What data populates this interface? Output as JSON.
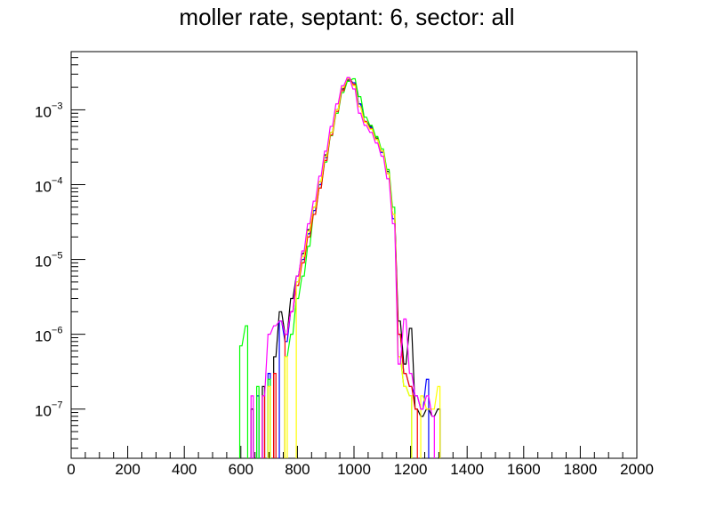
{
  "chart_data": {
    "type": "line",
    "title": "moller rate, septant: 6, sector: all",
    "xlabel": "",
    "ylabel": "",
    "xlim": [
      0,
      2000
    ],
    "ylim": [
      2.2e-08,
      0.006
    ],
    "yscale": "log",
    "grid": false,
    "x_ticks": [
      "0",
      "200",
      "400",
      "600",
      "800",
      "1000",
      "1200",
      "1400",
      "1600",
      "1800",
      "2000"
    ],
    "y_ticks": [
      {
        "value": 1e-07,
        "base": "10",
        "exp": "−7"
      },
      {
        "value": 1e-06,
        "base": "10",
        "exp": "−6"
      },
      {
        "value": 1e-05,
        "base": "10",
        "exp": "−5"
      },
      {
        "value": 0.0001,
        "base": "10",
        "exp": "−4"
      },
      {
        "value": 0.001,
        "base": "10",
        "exp": "−3"
      }
    ],
    "series": [
      {
        "color": "#000000",
        "x": [
          640,
          680,
          720,
          740,
          760,
          780,
          800,
          820,
          840,
          860,
          880,
          900,
          920,
          940,
          960,
          980,
          1000,
          1020,
          1040,
          1060,
          1080,
          1100,
          1120,
          1140,
          1160,
          1180,
          1200,
          1220,
          1240,
          1260,
          1280,
          1300
        ],
        "y": [
          1e-07,
          2e-07,
          5e-07,
          2e-06,
          1e-06,
          3e-06,
          6e-06,
          1.2e-05,
          2.5e-05,
          5e-05,
          0.00011,
          0.00025,
          0.0005,
          0.001,
          0.0019,
          0.0025,
          0.0022,
          0.0012,
          0.0007,
          0.0006,
          0.00042,
          0.00028,
          0.00015,
          4e-05,
          1.5e-06,
          4e-07,
          1.2e-06,
          1e-07,
          8e-08,
          1e-07,
          8e-08,
          1e-07
        ]
      },
      {
        "color": "#0000ff",
        "x": [
          660,
          700,
          740,
          760,
          780,
          800,
          820,
          840,
          860,
          880,
          900,
          920,
          940,
          960,
          980,
          1000,
          1020,
          1040,
          1060,
          1080,
          1100,
          1120,
          1140,
          1160,
          1180,
          1200,
          1220,
          1240,
          1260
        ],
        "y": [
          1.5e-07,
          3e-07,
          1.5e-06,
          8e-07,
          2e-06,
          5e-06,
          1e-05,
          2.2e-05,
          4.5e-05,
          0.0001,
          0.00023,
          0.0005,
          0.001,
          0.0018,
          0.0026,
          0.0023,
          0.0012,
          0.0007,
          0.00058,
          0.0004,
          0.00027,
          0.00014,
          3.5e-05,
          1e-06,
          3e-07,
          2e-07,
          1.5e-07,
          1e-07,
          2.5e-07
        ]
      },
      {
        "color": "#00ff00",
        "x": [
          600,
          620,
          660,
          700,
          760,
          780,
          800,
          820,
          840,
          860,
          880,
          900,
          920,
          940,
          960,
          980,
          1000,
          1020,
          1040,
          1060,
          1080,
          1100,
          1120,
          1140,
          1160,
          1180,
          1200
        ],
        "y": [
          7e-07,
          1.3e-06,
          2e-07,
          2.5e-07,
          5e-07,
          1e-06,
          3e-06,
          6e-06,
          1.5e-05,
          4e-05,
          9e-05,
          0.0002,
          0.00045,
          0.0009,
          0.0017,
          0.0024,
          0.0026,
          0.0015,
          0.0008,
          0.00062,
          0.00044,
          0.0003,
          0.00016,
          5e-05,
          5e-07,
          2e-07,
          1.5e-07
        ]
      },
      {
        "color": "#ff0000",
        "x": [
          680,
          720,
          760,
          780,
          800,
          820,
          840,
          860,
          880,
          900,
          920,
          940,
          960,
          980,
          1000,
          1020,
          1040,
          1060,
          1080,
          1100,
          1120,
          1140,
          1160,
          1180,
          1200,
          1220
        ],
        "y": [
          1.5e-07,
          3e-07,
          1e-06,
          2e-06,
          4.5e-06,
          9e-06,
          2e-05,
          4e-05,
          9e-05,
          0.00021,
          0.00046,
          0.00095,
          0.0018,
          0.0027,
          0.0022,
          0.0011,
          0.0007,
          0.00056,
          0.0004,
          0.00028,
          0.00014,
          4e-05,
          1e-06,
          3e-07,
          2e-07,
          1e-07
        ]
      },
      {
        "color": "#ffff00",
        "x": [
          700,
          760,
          800,
          820,
          840,
          860,
          880,
          900,
          920,
          940,
          960,
          980,
          1000,
          1020,
          1040,
          1060,
          1080,
          1100,
          1120,
          1140,
          1160,
          1180,
          1200,
          1240,
          1260,
          1280,
          1300
        ],
        "y": [
          2e-07,
          5e-07,
          5e-06,
          1.1e-05,
          2.4e-05,
          5e-05,
          0.00011,
          0.00024,
          0.0005,
          0.001,
          0.002,
          0.0026,
          0.0021,
          0.0011,
          0.00068,
          0.00055,
          0.0004,
          0.00028,
          0.00014,
          4e-05,
          5e-07,
          2e-07,
          1.5e-07,
          1.5e-07,
          1e-07,
          1e-07,
          2e-07
        ]
      },
      {
        "color": "#ff00ff",
        "x": [
          640,
          680,
          700,
          720,
          740,
          760,
          780,
          800,
          820,
          840,
          860,
          880,
          900,
          920,
          940,
          960,
          980,
          1000,
          1020,
          1040,
          1060,
          1080,
          1100,
          1120,
          1140,
          1160,
          1180,
          1200,
          1220,
          1240,
          1260,
          1280
        ],
        "y": [
          1.5e-07,
          1.5e-07,
          1e-06,
          1.3e-06,
          1.5e-06,
          1e-06,
          2e-06,
          6e-06,
          1.3e-05,
          3e-05,
          6e-05,
          0.00013,
          0.00028,
          0.0006,
          0.0012,
          0.0021,
          0.0027,
          0.0019,
          0.0009,
          0.00062,
          0.0005,
          0.00036,
          0.00024,
          0.00012,
          3e-05,
          4e-07,
          1.6e-06,
          3e-07,
          1.5e-07,
          1e-07,
          1.5e-07,
          8e-08
        ]
      }
    ]
  }
}
